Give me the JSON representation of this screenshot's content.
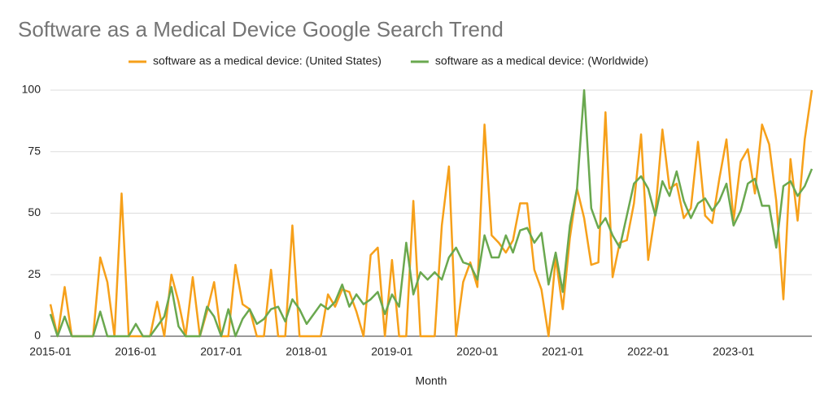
{
  "chart_data": {
    "type": "line",
    "title": "Software as a Medical Device Google Search Trend",
    "x_label": "Month",
    "categories": [
      "2015-01",
      null,
      null,
      null,
      null,
      null,
      null,
      null,
      null,
      null,
      null,
      null,
      "2016-01",
      null,
      null,
      null,
      null,
      null,
      null,
      null,
      null,
      null,
      null,
      null,
      "2017-01",
      null,
      null,
      null,
      null,
      null,
      null,
      null,
      null,
      null,
      null,
      null,
      "2018-01",
      null,
      null,
      null,
      null,
      null,
      null,
      null,
      null,
      null,
      null,
      null,
      "2019-01",
      null,
      null,
      null,
      null,
      null,
      null,
      null,
      null,
      null,
      null,
      null,
      "2020-01",
      null,
      null,
      null,
      null,
      null,
      null,
      null,
      null,
      null,
      null,
      null,
      "2021-01",
      null,
      null,
      null,
      null,
      null,
      null,
      null,
      null,
      null,
      null,
      null,
      "2022-01",
      null,
      null,
      null,
      null,
      null,
      null,
      null,
      null,
      null,
      null,
      null,
      "2023-01",
      null,
      null,
      null,
      null,
      null,
      null,
      null,
      null,
      null,
      null,
      null
    ],
    "series": [
      {
        "name": "software as a medical device: (United States)",
        "color": "#f6a01a",
        "values": [
          13,
          0,
          20,
          0,
          0,
          0,
          0,
          32,
          22,
          0,
          58,
          0,
          0,
          0,
          0,
          14,
          0,
          25,
          14,
          0,
          24,
          0,
          10,
          22,
          0,
          0,
          29,
          13,
          11,
          0,
          0,
          27,
          0,
          0,
          45,
          0,
          0,
          0,
          0,
          17,
          12,
          19,
          18,
          10,
          0,
          33,
          36,
          0,
          31,
          0,
          0,
          55,
          0,
          0,
          0,
          45,
          69,
          0,
          22,
          30,
          20,
          86,
          41,
          38,
          34,
          39,
          54,
          54,
          27,
          19,
          0,
          32,
          11,
          40,
          60,
          48,
          29,
          30,
          91,
          24,
          38,
          39,
          54,
          82,
          31,
          50,
          84,
          60,
          62,
          48,
          52,
          79,
          49,
          46,
          64,
          80,
          47,
          71,
          76,
          58,
          86,
          78,
          55,
          15,
          72,
          47,
          80,
          100
        ]
      },
      {
        "name": "software as a medical device: (Worldwide)",
        "color": "#6aa84f",
        "values": [
          9,
          0,
          8,
          0,
          0,
          0,
          0,
          10,
          0,
          0,
          0,
          0,
          5,
          0,
          0,
          4,
          8,
          20,
          4,
          0,
          0,
          0,
          12,
          8,
          0,
          11,
          0,
          7,
          11,
          5,
          7,
          11,
          12,
          6,
          15,
          11,
          5,
          9,
          13,
          11,
          14,
          21,
          12,
          17,
          13,
          15,
          18,
          9,
          17,
          12,
          38,
          17,
          26,
          23,
          26,
          23,
          32,
          36,
          30,
          29,
          23,
          41,
          32,
          32,
          41,
          34,
          43,
          44,
          38,
          42,
          21,
          34,
          18,
          45,
          60,
          100,
          52,
          44,
          48,
          41,
          36,
          49,
          62,
          65,
          60,
          49,
          63,
          57,
          67,
          55,
          48,
          54,
          56,
          51,
          55,
          62,
          45,
          51,
          62,
          64,
          53,
          53,
          36,
          61,
          63,
          57,
          61,
          68
        ]
      }
    ],
    "ylim": [
      0,
      100
    ],
    "yticks": [
      0,
      25,
      50,
      75,
      100
    ],
    "grid": true,
    "legend": "top"
  }
}
